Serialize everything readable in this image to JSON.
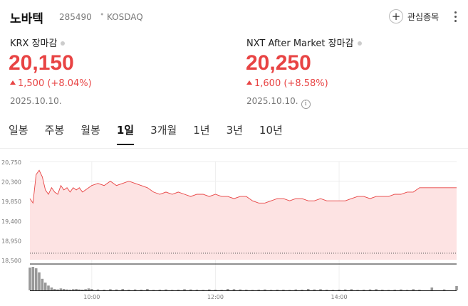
{
  "header": {
    "stock_name": "노바텍",
    "stock_code": "285490",
    "separator": "•",
    "market": "KOSDAQ",
    "watch_label": "관심종목"
  },
  "krx": {
    "label": "KRX 장마감",
    "price": "20,150",
    "change": "1,500",
    "change_pct": "(+8.04%)",
    "date": "2025.10.10."
  },
  "nxt": {
    "label": "NXT After Market 장마감",
    "price": "20,250",
    "change": "1,600",
    "change_pct": "(+8.58%)",
    "date": "2025.10.10."
  },
  "tabs": [
    {
      "label": "일봉",
      "active": false
    },
    {
      "label": "주봉",
      "active": false
    },
    {
      "label": "월봉",
      "active": false
    },
    {
      "label": "1일",
      "active": true
    },
    {
      "label": "3개월",
      "active": false
    },
    {
      "label": "1년",
      "active": false
    },
    {
      "label": "3년",
      "active": false
    },
    {
      "label": "10년",
      "active": false
    }
  ],
  "colors": {
    "up": "#e84444",
    "area_fill": "#fde3e3",
    "volume": "#999999",
    "text_muted": "#777777"
  },
  "chart_data": {
    "type": "area",
    "y_ticks": [
      "20,750",
      "20,300",
      "19,850",
      "19,400",
      "18,950",
      "18,500"
    ],
    "ylim": [
      18500,
      20750
    ],
    "x_ticks": [
      "10:00",
      "12:00",
      "14:00"
    ],
    "previous_close_line": 18650,
    "x": [
      9.0,
      9.05,
      9.1,
      9.15,
      9.2,
      9.25,
      9.3,
      9.35,
      9.4,
      9.45,
      9.5,
      9.55,
      9.6,
      9.65,
      9.7,
      9.75,
      9.8,
      9.85,
      9.9,
      9.95,
      10.0,
      10.1,
      10.2,
      10.3,
      10.4,
      10.5,
      10.6,
      10.7,
      10.8,
      10.9,
      11.0,
      11.1,
      11.2,
      11.3,
      11.4,
      11.5,
      11.6,
      11.7,
      11.8,
      11.9,
      12.0,
      12.1,
      12.2,
      12.3,
      12.4,
      12.5,
      12.6,
      12.7,
      12.8,
      12.9,
      13.0,
      13.1,
      13.2,
      13.3,
      13.4,
      13.5,
      13.6,
      13.7,
      13.8,
      13.9,
      14.0,
      14.1,
      14.2,
      14.3,
      14.4,
      14.5,
      14.6,
      14.7,
      14.8,
      14.9,
      15.0,
      15.1,
      15.2,
      15.3,
      15.5,
      15.7,
      15.9
    ],
    "values": [
      19900,
      19800,
      20450,
      20550,
      20400,
      20100,
      20000,
      20150,
      20050,
      20000,
      20200,
      20100,
      20150,
      20050,
      20150,
      20100,
      20150,
      20050,
      20100,
      20150,
      20200,
      20250,
      20200,
      20300,
      20200,
      20250,
      20300,
      20250,
      20200,
      20150,
      20050,
      20000,
      20050,
      20000,
      20050,
      20000,
      19950,
      20000,
      20000,
      19950,
      20000,
      19950,
      19950,
      19900,
      19950,
      19950,
      19850,
      19800,
      19800,
      19850,
      19900,
      19900,
      19850,
      19900,
      19900,
      19850,
      19850,
      19900,
      19850,
      19850,
      19850,
      19850,
      19900,
      19950,
      19950,
      19900,
      19950,
      19950,
      19950,
      20000,
      20000,
      20050,
      20050,
      20150,
      20150,
      20150,
      20150
    ],
    "volume": [
      95,
      98,
      92,
      75,
      48,
      32,
      20,
      12,
      6,
      4,
      8,
      6,
      4,
      3,
      5,
      6,
      4,
      3,
      5,
      8,
      6,
      4,
      3,
      5,
      4,
      6,
      3,
      4,
      3,
      6,
      2,
      3,
      4,
      2,
      3,
      5,
      4,
      3,
      2,
      4,
      3,
      2,
      6,
      5,
      4,
      3,
      2,
      3,
      4,
      2,
      3,
      3,
      2,
      4,
      3,
      6,
      4,
      5,
      3,
      2,
      3,
      4,
      5,
      2,
      3,
      4,
      5,
      3,
      2,
      3,
      4,
      2,
      5,
      3,
      12,
      4,
      18
    ]
  }
}
